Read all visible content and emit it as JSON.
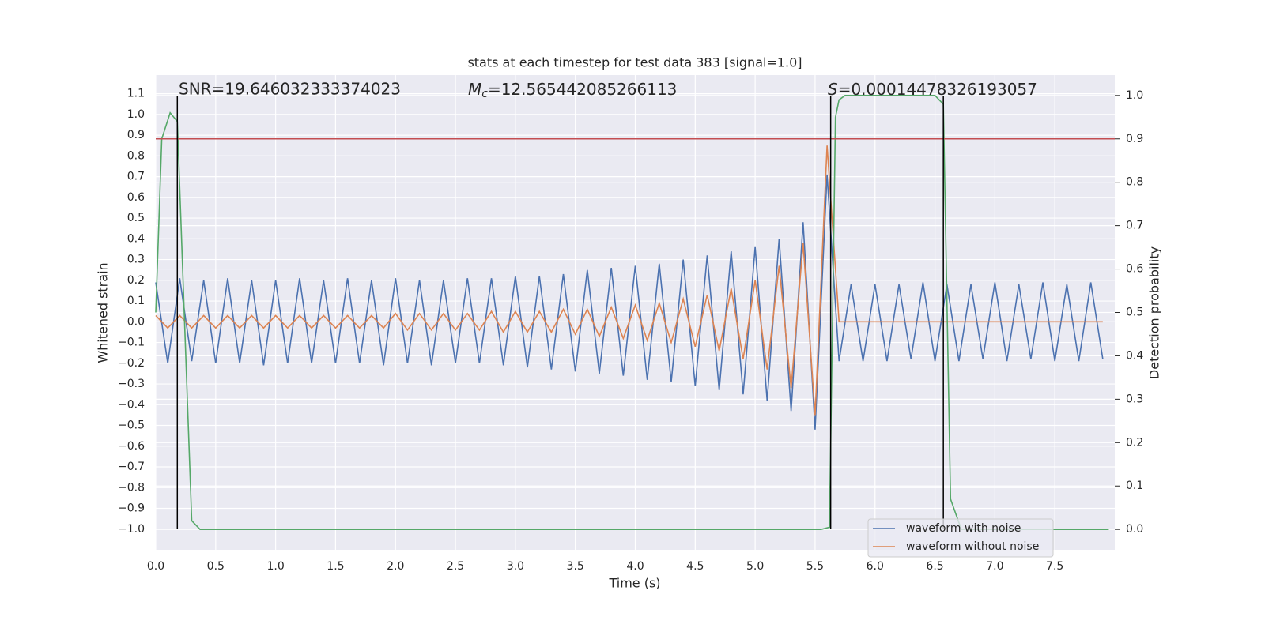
{
  "chart_data": {
    "type": "line",
    "title": "stats at each timestep for test data 383 [signal=1.0]",
    "xlabel": "Time (s)",
    "ylabel": "Whitened strain",
    "y2label": "Detection probability",
    "annotations": [
      {
        "text": "SNR=19.646032333374023"
      },
      {
        "symbol": "M",
        "subscript": "c",
        "text": "=12.565442085266113"
      },
      {
        "symbol": "S",
        "text": "=0.00014478326193057"
      }
    ],
    "xlim": [
      0,
      8.0
    ],
    "ylim": [
      -1.1,
      1.19
    ],
    "y2lim": [
      -0.047,
      1.047
    ],
    "xticks": [
      {
        "value": 0,
        "label": "0.0"
      },
      0.5,
      {
        "value": 1,
        "label": "1.0"
      },
      1.5,
      {
        "value": 2,
        "label": "2.0"
      },
      2.5,
      {
        "value": 3,
        "label": "3.0"
      },
      3.5,
      {
        "value": 4,
        "label": "4.0"
      },
      4.5,
      {
        "value": 5,
        "label": "5.0"
      },
      5.5,
      {
        "value": 6,
        "label": "6.0"
      },
      6.5,
      {
        "value": 7,
        "label": "7.0"
      },
      7.5
    ],
    "yticks": [
      {
        "value": -1.0,
        "label": "−1.0"
      },
      {
        "value": -0.9,
        "label": "−0.9"
      },
      {
        "value": -0.8,
        "label": "−0.8"
      },
      {
        "value": -0.7,
        "label": "−0.7"
      },
      {
        "value": -0.6,
        "label": "−0.6"
      },
      {
        "value": -0.5,
        "label": "−0.5"
      },
      {
        "value": -0.4,
        "label": "−0.4"
      },
      {
        "value": -0.3,
        "label": "−0.3"
      },
      {
        "value": -0.2,
        "label": "−0.2"
      },
      {
        "value": -0.1,
        "label": "−0.1"
      },
      {
        "value": 0,
        "label": "0.0"
      },
      0.1,
      0.2,
      0.3,
      0.4,
      0.5,
      0.6,
      0.7,
      0.8,
      0.9,
      {
        "value": 1,
        "label": "1.0"
      },
      1.1
    ],
    "y2ticks": [
      {
        "value": 0,
        "label": "0.0"
      },
      0.1,
      0.2,
      0.3,
      0.4,
      0.5,
      0.6,
      0.7,
      0.8,
      0.9,
      {
        "value": 1,
        "label": "1.0"
      }
    ],
    "grid": true,
    "legend": "lower right",
    "series": [
      {
        "name": "waveform with noise",
        "color": "#4c72b0",
        "x": [
          0,
          0.1,
          0.2,
          0.3,
          0.4,
          0.5,
          0.6,
          0.7,
          0.8,
          0.9,
          1,
          1.1,
          1.2,
          1.3,
          1.4,
          1.5,
          1.6,
          1.7,
          1.8,
          1.9,
          2,
          2.1,
          2.2,
          2.3,
          2.4,
          2.5,
          2.6,
          2.7,
          2.8,
          2.9,
          3,
          3.1,
          3.2,
          3.3,
          3.4,
          3.5,
          3.6,
          3.7,
          3.8,
          3.9,
          4,
          4.1,
          4.2,
          4.3,
          4.4,
          4.5,
          4.6,
          4.7,
          4.8,
          4.9,
          5,
          5.1,
          5.2,
          5.3,
          5.4,
          5.5,
          5.6,
          5.7,
          5.8,
          5.9,
          6,
          6.1,
          6.2,
          6.3,
          6.4,
          6.5,
          6.6,
          6.7,
          6.8,
          6.9,
          7,
          7.1,
          7.2,
          7.3,
          7.4,
          7.5,
          7.6,
          7.7,
          7.8,
          7.9
        ],
        "values": [
          0.19,
          -0.2,
          0.21,
          -0.19,
          0.2,
          -0.2,
          0.21,
          -0.2,
          0.2,
          -0.21,
          0.2,
          -0.2,
          0.21,
          -0.2,
          0.2,
          -0.2,
          0.21,
          -0.2,
          0.2,
          -0.21,
          0.21,
          -0.2,
          0.2,
          -0.21,
          0.2,
          -0.2,
          0.21,
          -0.2,
          0.21,
          -0.21,
          0.22,
          -0.22,
          0.22,
          -0.23,
          0.23,
          -0.24,
          0.25,
          -0.25,
          0.26,
          -0.26,
          0.27,
          -0.28,
          0.28,
          -0.29,
          0.3,
          -0.31,
          0.32,
          -0.33,
          0.34,
          -0.35,
          0.36,
          -0.38,
          0.4,
          -0.43,
          0.48,
          -0.52,
          0.71,
          -0.19,
          0.18,
          -0.19,
          0.18,
          -0.19,
          0.18,
          -0.18,
          0.19,
          -0.19,
          0.18,
          -0.19,
          0.18,
          -0.18,
          0.19,
          -0.19,
          0.18,
          -0.18,
          0.19,
          -0.19,
          0.18,
          -0.19,
          0.19,
          -0.18
        ]
      },
      {
        "name": "waveform without noise",
        "color": "#dd8452",
        "x": [
          0,
          0.1,
          0.2,
          0.3,
          0.4,
          0.5,
          0.6,
          0.7,
          0.8,
          0.9,
          1,
          1.1,
          1.2,
          1.3,
          1.4,
          1.5,
          1.6,
          1.7,
          1.8,
          1.9,
          2,
          2.1,
          2.2,
          2.3,
          2.4,
          2.5,
          2.6,
          2.7,
          2.8,
          2.9,
          3,
          3.1,
          3.2,
          3.3,
          3.4,
          3.5,
          3.6,
          3.7,
          3.8,
          3.9,
          4,
          4.1,
          4.2,
          4.3,
          4.4,
          4.5,
          4.6,
          4.7,
          4.8,
          4.9,
          5,
          5.1,
          5.2,
          5.3,
          5.4,
          5.5,
          5.6,
          5.7,
          5.8,
          5.9,
          6,
          6.1,
          6.2,
          6.3,
          6.4,
          6.5,
          6.6,
          6.7,
          6.8,
          6.9,
          7,
          7.1,
          7.2,
          7.3,
          7.4,
          7.5,
          7.6,
          7.7,
          7.8,
          7.9
        ],
        "values": [
          0.03,
          -0.03,
          0.03,
          -0.03,
          0.03,
          -0.03,
          0.03,
          -0.03,
          0.03,
          -0.03,
          0.03,
          -0.03,
          0.03,
          -0.03,
          0.03,
          -0.03,
          0.03,
          -0.03,
          0.03,
          -0.03,
          0.04,
          -0.04,
          0.04,
          -0.04,
          0.04,
          -0.04,
          0.04,
          -0.04,
          0.05,
          -0.05,
          0.05,
          -0.05,
          0.05,
          -0.05,
          0.06,
          -0.06,
          0.06,
          -0.07,
          0.07,
          -0.08,
          0.08,
          -0.09,
          0.09,
          -0.1,
          0.11,
          -0.12,
          0.13,
          -0.14,
          0.16,
          -0.18,
          0.2,
          -0.23,
          0.27,
          -0.32,
          0.38,
          -0.45,
          0.85,
          0,
          0,
          0,
          0,
          0,
          0,
          0,
          0,
          0,
          0,
          0,
          0,
          0,
          0,
          0,
          0,
          0,
          0,
          0,
          0,
          0,
          0,
          0
        ]
      },
      {
        "color": "#55a868",
        "axis": "y2",
        "x": [
          0,
          0.05,
          0.12,
          0.18,
          0.3,
          0.37,
          5.55,
          5.62,
          5.67,
          5.7,
          5.75,
          6.5,
          6.57,
          6.63,
          6.72,
          7.95
        ],
        "values": [
          0.5,
          0.9,
          0.96,
          0.94,
          0.02,
          0,
          0,
          0.005,
          0.95,
          0.99,
          1.0,
          1.0,
          0.98,
          0.07,
          0,
          0
        ]
      }
    ],
    "hline": {
      "value": 0.9,
      "axis": "y2",
      "color": "#c44e52"
    },
    "vlines": {
      "x": [
        0.18,
        5.63,
        6.57
      ],
      "color": "#000000"
    }
  }
}
